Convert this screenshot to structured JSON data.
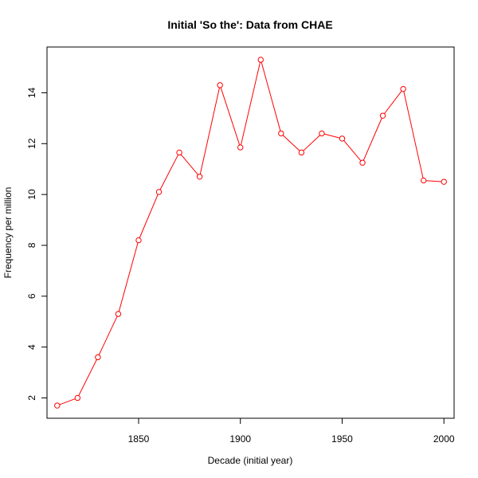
{
  "chart_data": {
    "type": "line",
    "title": "Initial 'So the': Data from CHAE",
    "xlabel": "Decade (initial year)",
    "ylabel": "Frequency per million",
    "xlim": [
      1805,
      2005
    ],
    "ylim": [
      1.2,
      15.8
    ],
    "x_ticks": [
      1850,
      1900,
      1950,
      2000
    ],
    "y_ticks": [
      2,
      4,
      6,
      8,
      10,
      12,
      14
    ],
    "grid": false,
    "series": [
      {
        "color": "#ff0000",
        "marker": "open-circle",
        "x": [
          1810,
          1820,
          1830,
          1840,
          1850,
          1860,
          1870,
          1880,
          1890,
          1900,
          1910,
          1920,
          1930,
          1940,
          1950,
          1960,
          1970,
          1980,
          1990,
          2000
        ],
        "y": [
          1.7,
          2.0,
          3.6,
          5.3,
          8.2,
          10.1,
          11.65,
          10.7,
          14.3,
          11.85,
          15.3,
          12.4,
          11.65,
          12.4,
          12.2,
          11.25,
          13.1,
          14.15,
          10.55,
          10.5
        ]
      }
    ]
  }
}
